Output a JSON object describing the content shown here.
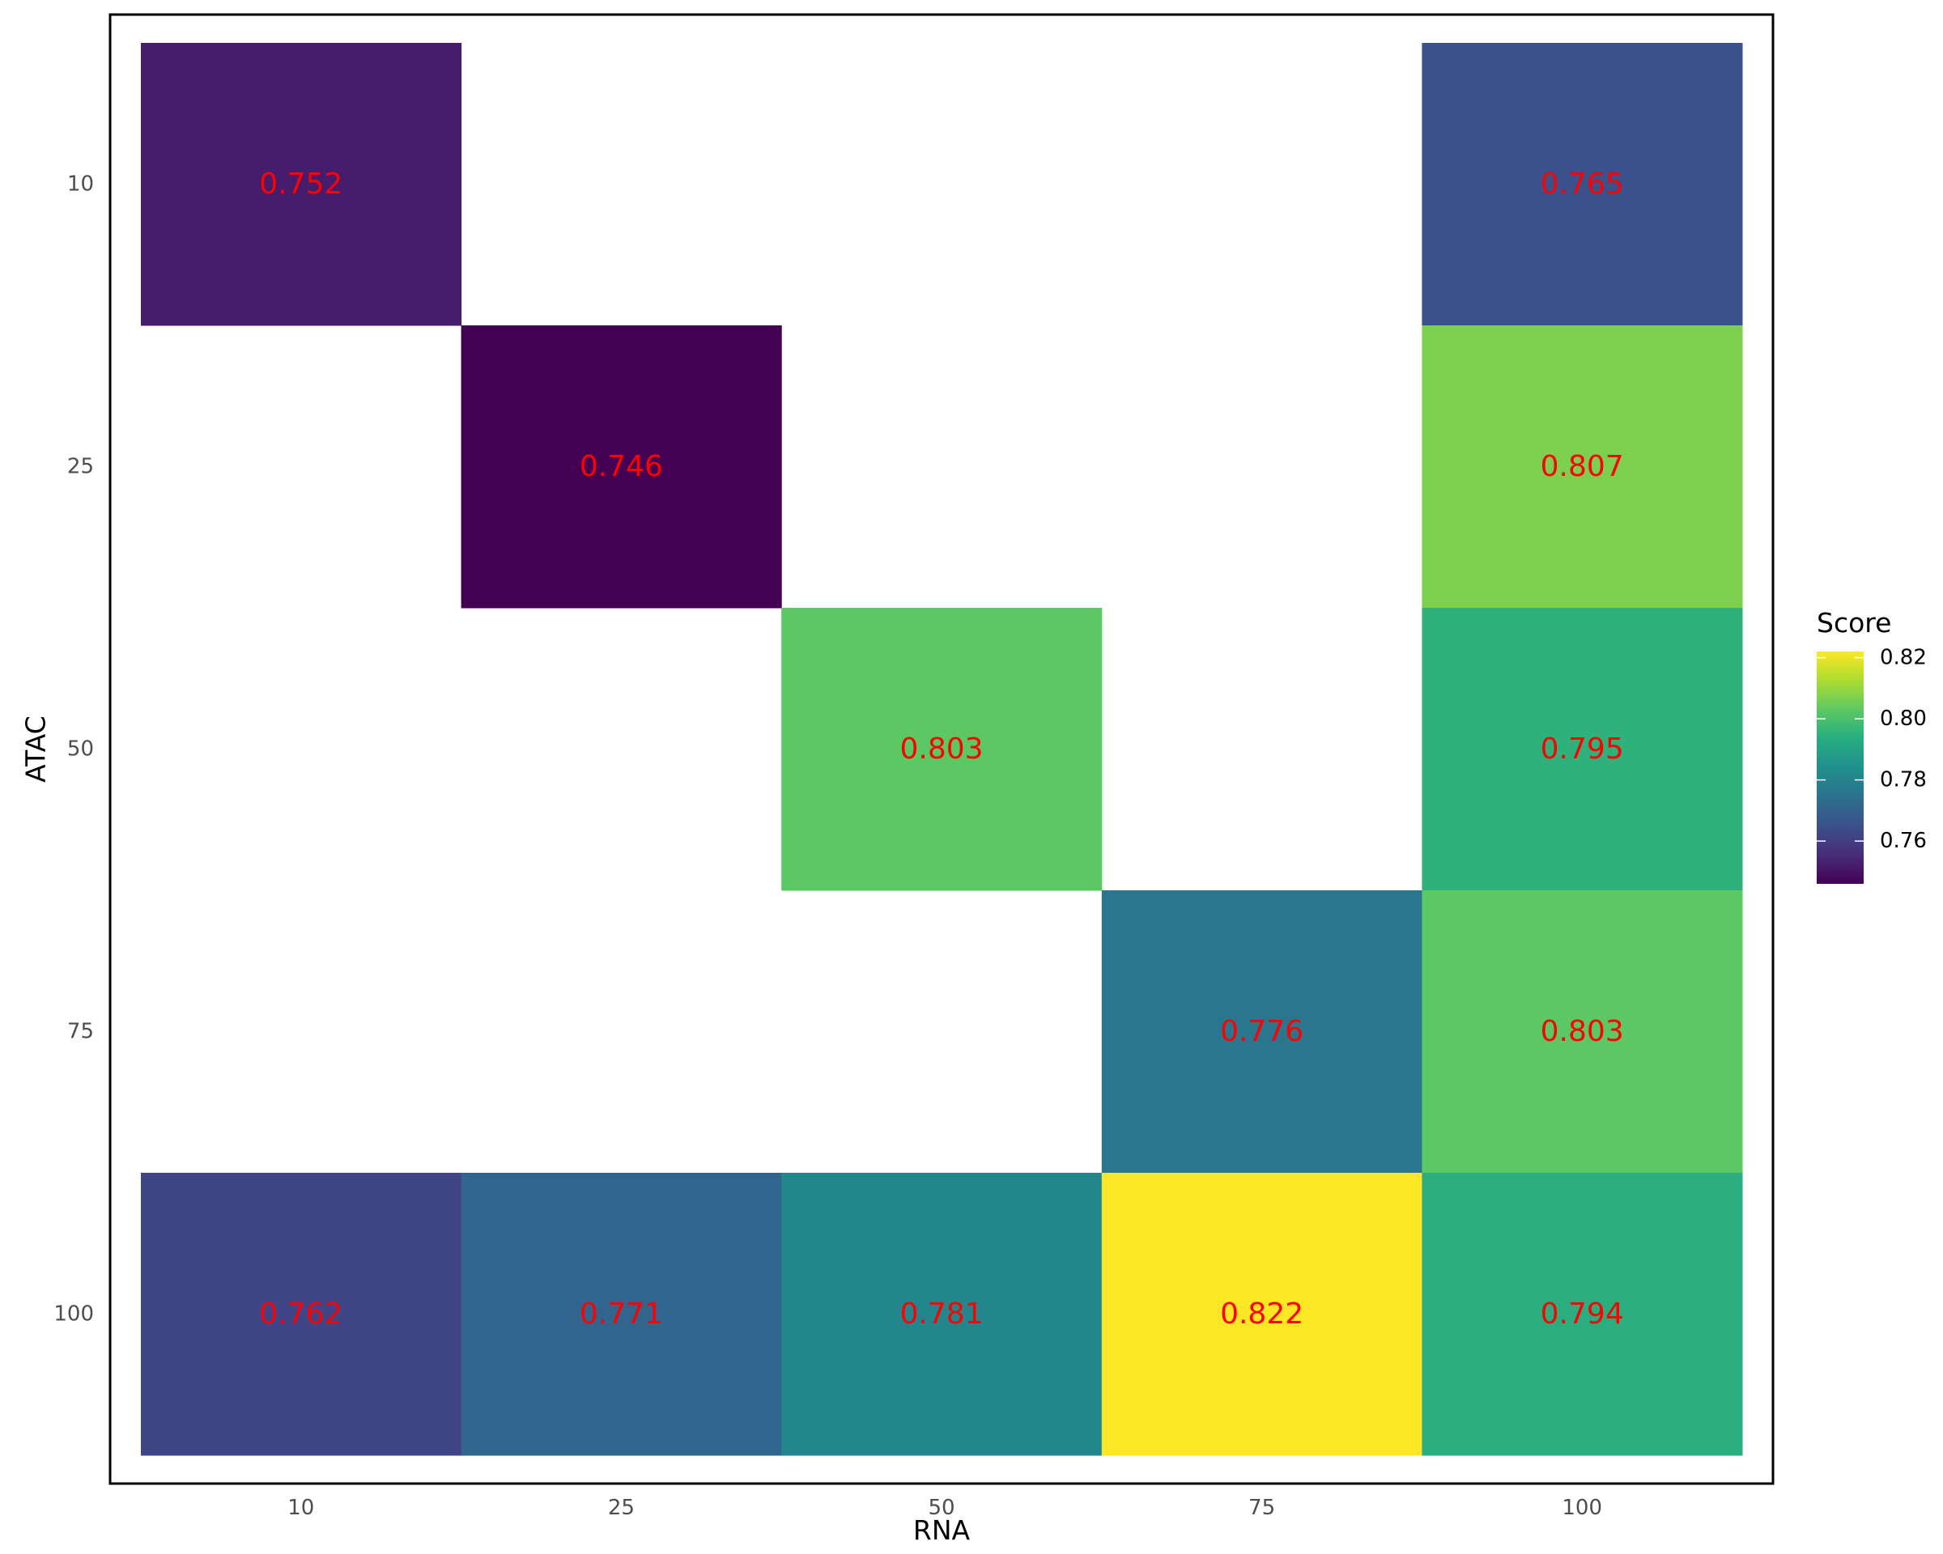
{
  "chart_data": {
    "type": "heatmap",
    "title": "",
    "xlabel": "RNA",
    "ylabel": "ATAC",
    "x_categories": [
      "10",
      "25",
      "50",
      "75",
      "100"
    ],
    "y_categories": [
      "10",
      "25",
      "50",
      "75",
      "100"
    ],
    "cells": [
      {
        "x": "10",
        "y": "10",
        "value": 0.752,
        "label": "0.752"
      },
      {
        "x": "100",
        "y": "10",
        "value": 0.765,
        "label": "0.765"
      },
      {
        "x": "25",
        "y": "25",
        "value": 0.746,
        "label": "0.746"
      },
      {
        "x": "100",
        "y": "25",
        "value": 0.807,
        "label": "0.807"
      },
      {
        "x": "50",
        "y": "50",
        "value": 0.803,
        "label": "0.803"
      },
      {
        "x": "100",
        "y": "50",
        "value": 0.795,
        "label": "0.795"
      },
      {
        "x": "75",
        "y": "75",
        "value": 0.776,
        "label": "0.776"
      },
      {
        "x": "100",
        "y": "75",
        "value": 0.803,
        "label": "0.803"
      },
      {
        "x": "10",
        "y": "100",
        "value": 0.762,
        "label": "0.762"
      },
      {
        "x": "25",
        "y": "100",
        "value": 0.771,
        "label": "0.771"
      },
      {
        "x": "50",
        "y": "100",
        "value": 0.781,
        "label": "0.781"
      },
      {
        "x": "75",
        "y": "100",
        "value": 0.822,
        "label": "0.822"
      },
      {
        "x": "100",
        "y": "100",
        "value": 0.794,
        "label": "0.794"
      }
    ],
    "legend": {
      "title": "Score",
      "position": "right",
      "ticks": [
        0.76,
        0.78,
        0.8,
        0.82
      ],
      "tick_labels": [
        "0.76",
        "0.78",
        "0.80",
        "0.82"
      ],
      "range": [
        0.746,
        0.822
      ],
      "colormap": "viridis"
    },
    "label_color": "#ff0000",
    "grid": false,
    "panel_border": true
  }
}
